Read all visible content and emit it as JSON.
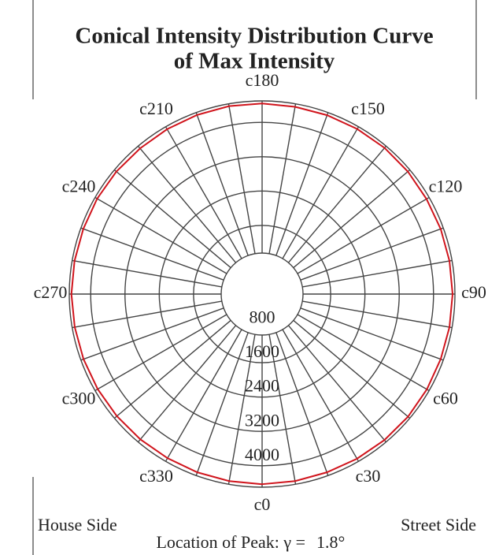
{
  "chart_data": {
    "type": "polar",
    "title": [
      "Conical Intensity Distribution Curve",
      "of Max Intensity"
    ],
    "theta": [
      0,
      10,
      20,
      30,
      40,
      50,
      60,
      70,
      80,
      90,
      100,
      110,
      120,
      130,
      140,
      150,
      160,
      170,
      180,
      190,
      200,
      210,
      220,
      230,
      240,
      250,
      260,
      270,
      280,
      290,
      300,
      310,
      320,
      330,
      340,
      350
    ],
    "theta_ticks": [
      {
        "value": 0,
        "label": "c0"
      },
      {
        "value": 30,
        "label": "c30"
      },
      {
        "value": 60,
        "label": "c60"
      },
      {
        "value": 90,
        "label": "c90"
      },
      {
        "value": 120,
        "label": "c120"
      },
      {
        "value": 150,
        "label": "c150"
      },
      {
        "value": 180,
        "label": "c180"
      },
      {
        "value": 210,
        "label": "c210"
      },
      {
        "value": 240,
        "label": "c240"
      },
      {
        "value": 270,
        "label": "c270"
      },
      {
        "value": 300,
        "label": "c300"
      },
      {
        "value": 330,
        "label": "c330"
      }
    ],
    "rlim": [
      0,
      4500
    ],
    "rticks": [
      800,
      1600,
      2400,
      3200,
      4000
    ],
    "series": [
      {
        "name": "Max Intensity",
        "color": "#d0141c",
        "values": [
          4430,
          4425,
          4420,
          4430,
          4440,
          4445,
          4440,
          4435,
          4440,
          4445,
          4440,
          4435,
          4430,
          4440,
          4445,
          4440,
          4435,
          4430,
          4440,
          4445,
          4440,
          4435,
          4430,
          4440,
          4445,
          4440,
          4445,
          4450,
          4440,
          4435,
          4430,
          4425,
          4420,
          4415,
          4420,
          4425
        ]
      }
    ],
    "left_label": "House Side",
    "right_label": "Street Side",
    "peak_label": "Location of Peak: γ =",
    "peak_value": "1.8°",
    "peak_color": "#d0141c"
  }
}
